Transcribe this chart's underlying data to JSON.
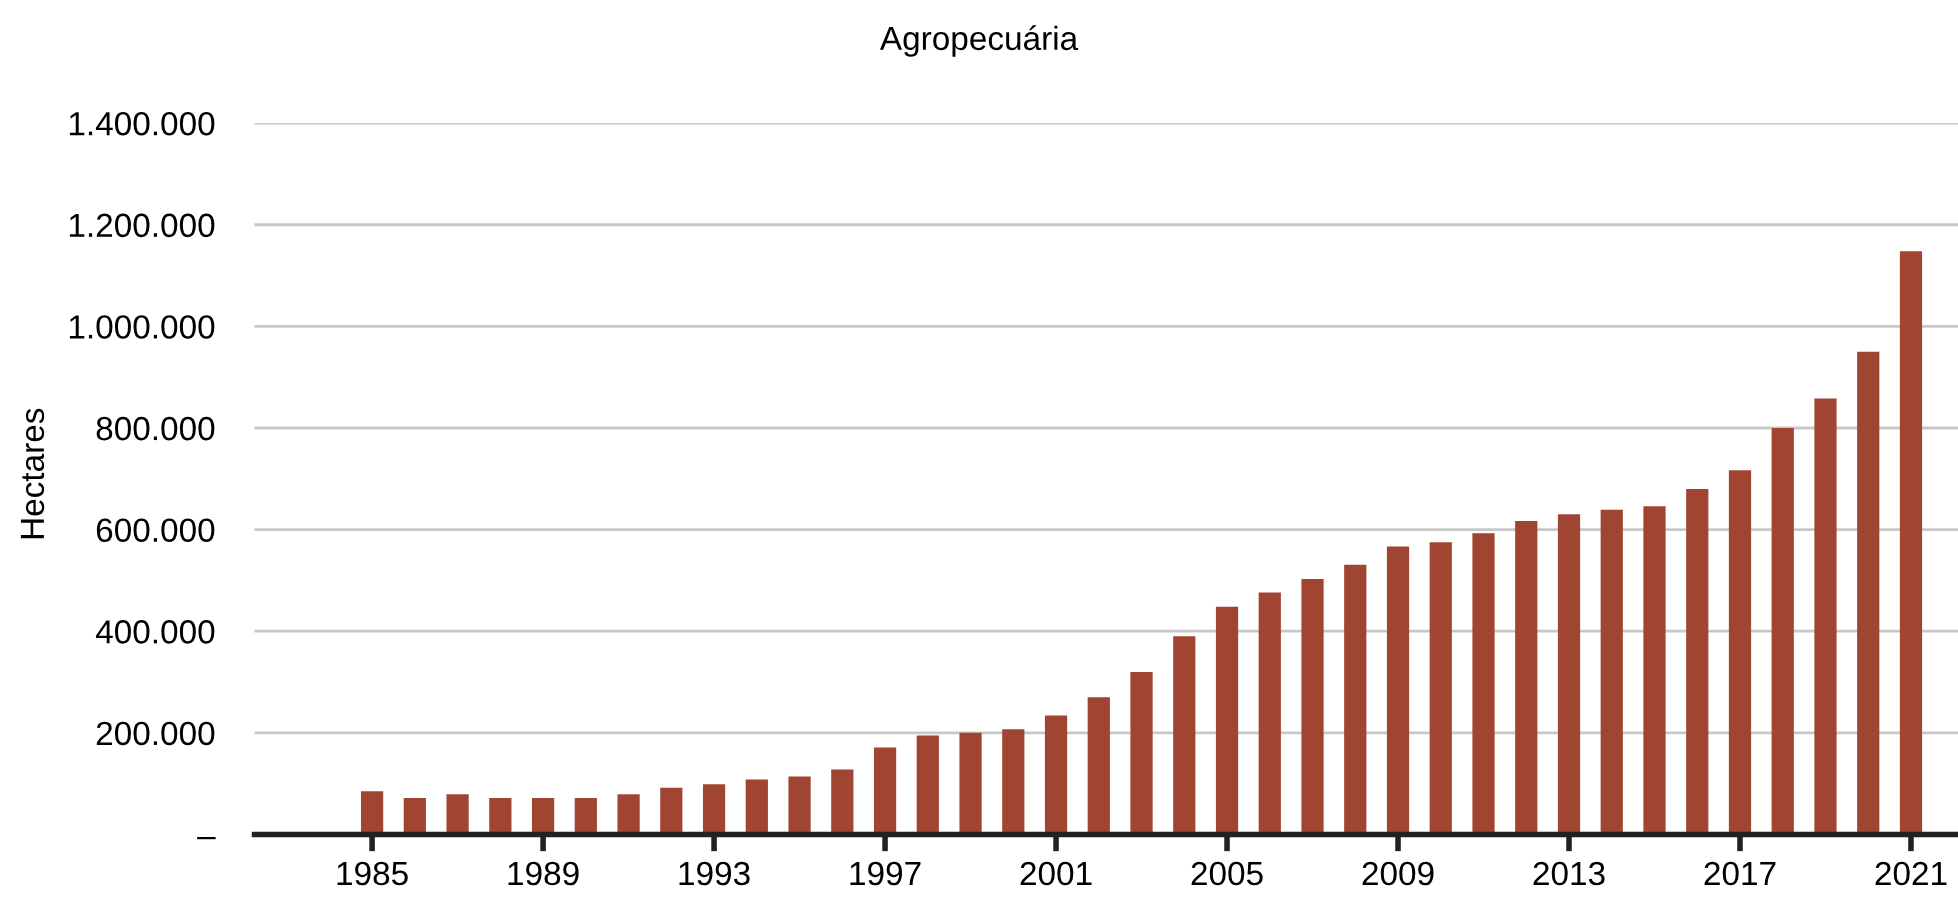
{
  "chart_data": {
    "type": "bar",
    "title": "Agropecuária",
    "ylabel": "Hectares",
    "categories": [
      "1985",
      null,
      null,
      null,
      "1989",
      null,
      null,
      null,
      "1993",
      null,
      null,
      null,
      "1997",
      null,
      null,
      null,
      "2001",
      null,
      null,
      null,
      "2005",
      null,
      null,
      null,
      "2009",
      null,
      null,
      null,
      "2013",
      null,
      null,
      null,
      "2017",
      null,
      null,
      null,
      "2021"
    ],
    "values": [
      85000,
      72000,
      79000,
      72000,
      72000,
      72000,
      79000,
      92000,
      99000,
      108000,
      114000,
      128000,
      171000,
      195000,
      200000,
      207000,
      234000,
      270000,
      320000,
      390000,
      448000,
      476000,
      503000,
      531000,
      567000,
      575000,
      593000,
      617000,
      630000,
      639000,
      646000,
      680000,
      717000,
      800000,
      858000,
      950000,
      1148000
    ],
    "color": "#a04531",
    "ylim": [
      0,
      1400000
    ],
    "yticks": [
      {
        "value": 0,
        "label": "–"
      },
      {
        "value": 200000,
        "label": "200.000"
      },
      {
        "value": 400000,
        "label": "400.000"
      },
      {
        "value": 600000,
        "label": "600.000"
      },
      {
        "value": 800000,
        "label": "800.000"
      },
      {
        "value": 1000000,
        "label": "1.000.000"
      },
      {
        "value": 1200000,
        "label": "1.200.000"
      },
      {
        "value": 1400000,
        "label": "1.400.000"
      }
    ],
    "grid": "y",
    "legend": false
  }
}
